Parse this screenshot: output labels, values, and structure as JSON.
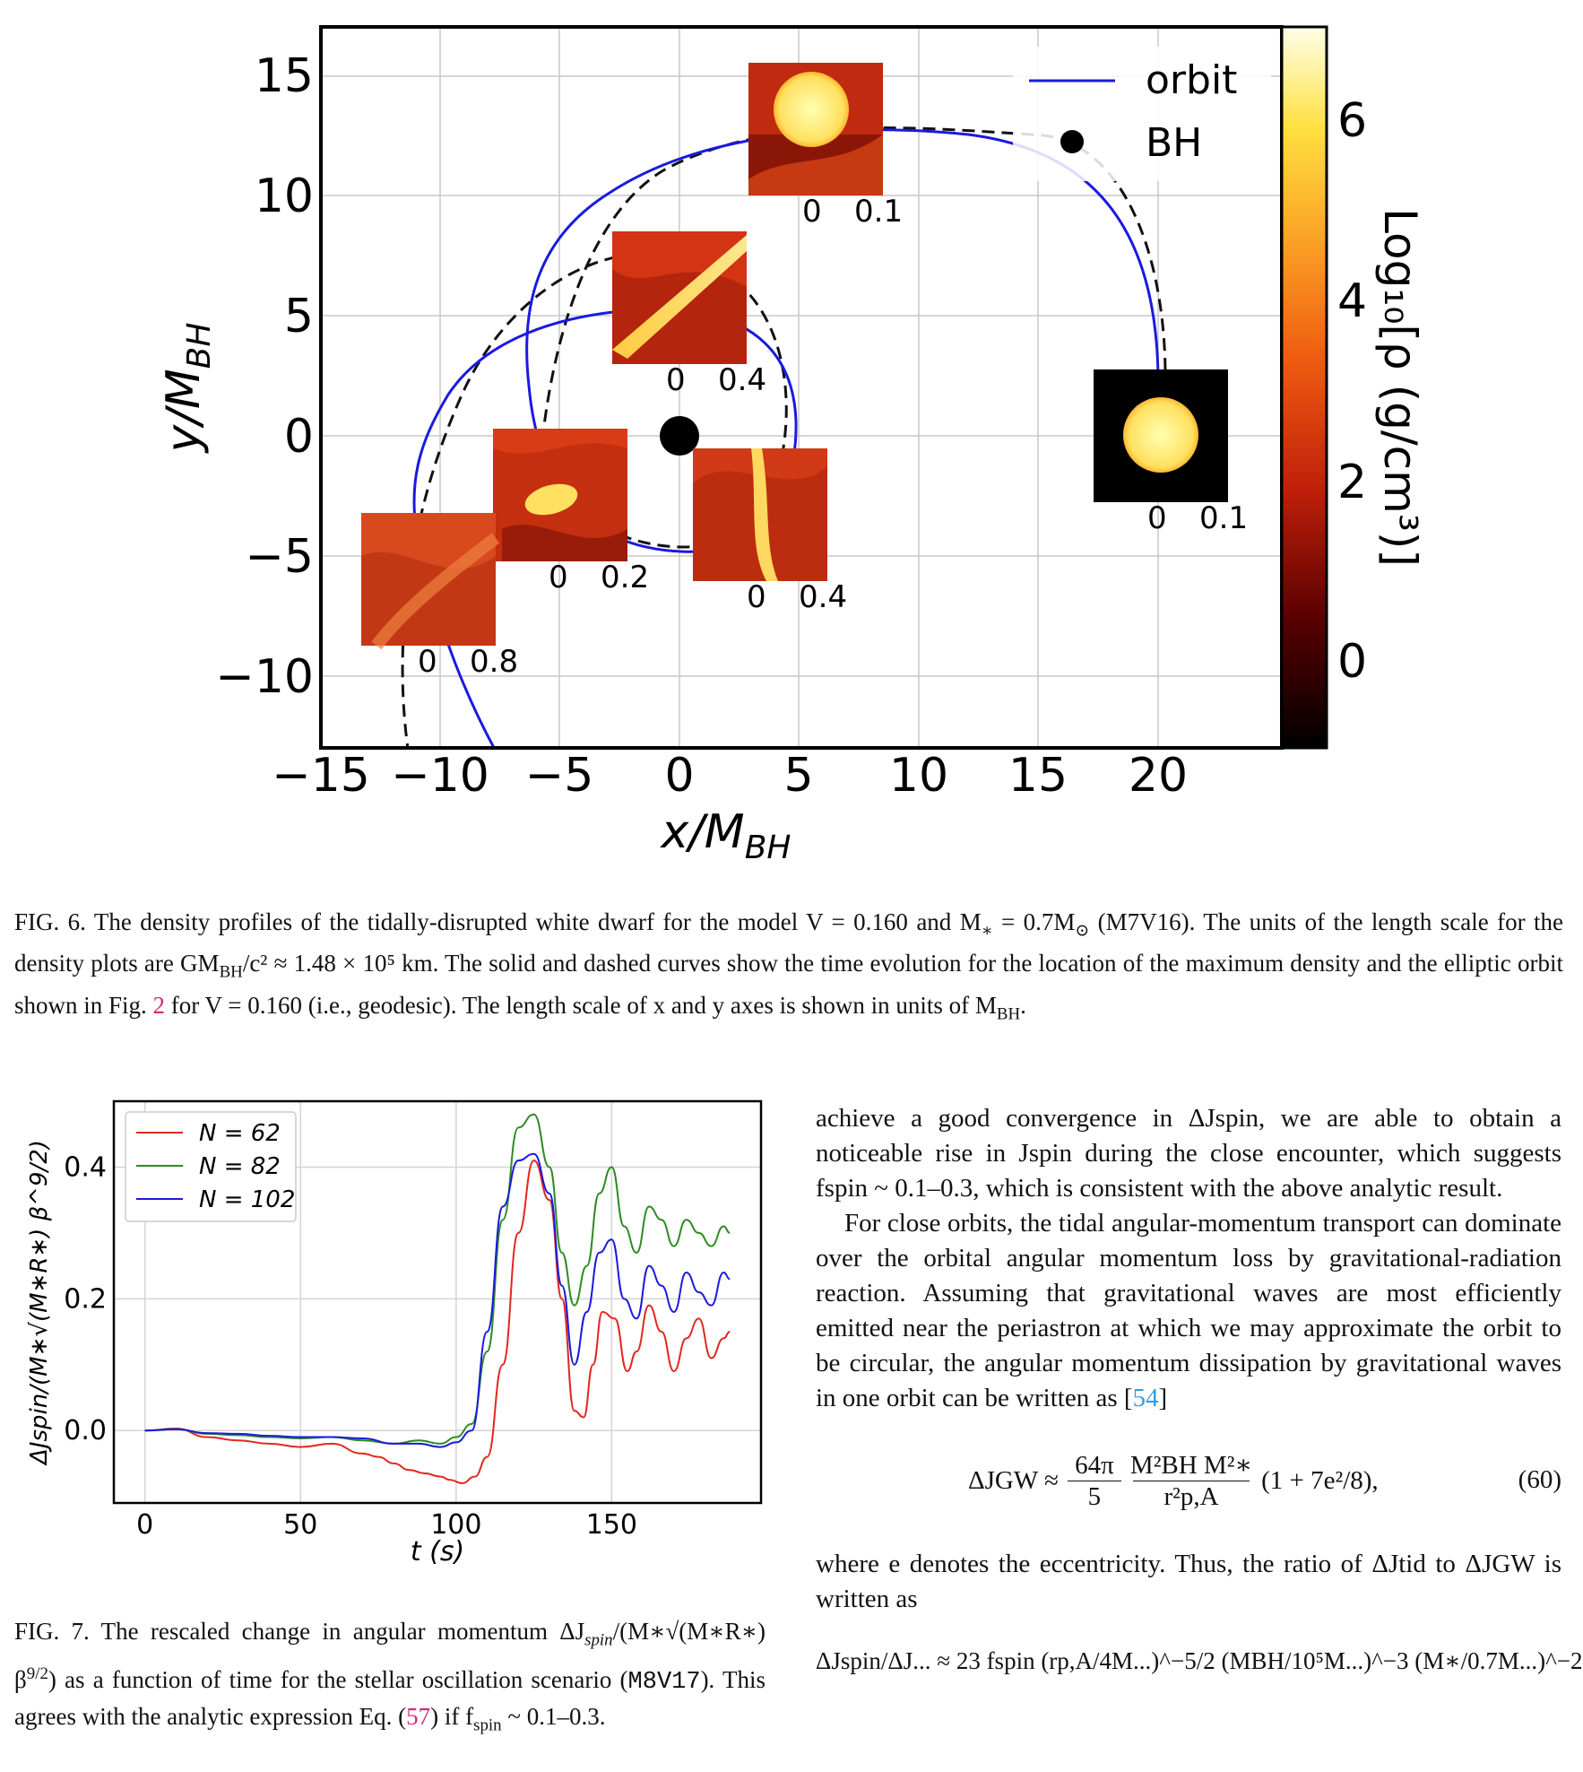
{
  "figure6": {
    "x_label": "x/M",
    "x_label_sub": "BH",
    "y_label": "y/M",
    "y_label_sub": "BH",
    "x_ticks": [
      "−15",
      "−10",
      "−5",
      "0",
      "5",
      "10",
      "15",
      "20"
    ],
    "y_ticks": [
      "15",
      "10",
      "5",
      "0",
      "−5",
      "−10"
    ],
    "legend": [
      "orbit",
      "BH"
    ],
    "colorbar_label": "Log₁₀[ρ (g/cm³)]",
    "colorbar_ticks": [
      "6",
      "4",
      "2",
      "0"
    ],
    "inset_labels": [
      {
        "min": "0",
        "max": "0.1"
      },
      {
        "min": "0",
        "max": "0.4"
      },
      {
        "min": "0",
        "max": "0.1"
      },
      {
        "min": "0",
        "max": "0.2"
      },
      {
        "min": "0",
        "max": "0.4"
      },
      {
        "min": "0",
        "max": "0.8"
      }
    ],
    "colors": {
      "orbit": "#1a1ae0",
      "dashed": "#111111",
      "bh": "#000000"
    }
  },
  "caption6": {
    "label": "FIG. 6.",
    "text_a": "The density profiles of the tidally-disrupted white dwarf for the model V = 0.160 and M",
    "text_b": " = 0.7M",
    "text_c": " (M7V16). The units of the length scale for the density plots are GM",
    "text_d": "/c² ≈ 1.48 × 10⁵ km. The solid and dashed curves show the time evolution for the location of the maximum density and the elliptic orbit shown in Fig. ",
    "fig_ref": "2",
    "text_e": " for V = 0.160 (i.e., geodesic). The length scale of x and y axes is shown in units of M",
    "text_f": "."
  },
  "figure7": {
    "x_label": "t (s)",
    "y_label": "ΔJspin/(M∗√(M∗R∗) β^9/2)",
    "x_ticks": [
      "0",
      "50",
      "100",
      "150"
    ],
    "y_ticks": [
      "0.4",
      "0.2",
      "0.0"
    ],
    "legend": [
      "N = 62",
      "N = 82",
      "N = 102"
    ]
  },
  "chart_data": {
    "type": "line",
    "x_label": "t (s)",
    "y_label": "ΔJspin/(M∗√(M∗R∗) β^9/2)",
    "xlim": [
      -10,
      198
    ],
    "ylim": [
      -0.11,
      0.5
    ],
    "grid": true,
    "legend_position": "top-left",
    "series": [
      {
        "name": "N = 62",
        "color": "#e0281e",
        "x": [
          0,
          10,
          20,
          30,
          40,
          50,
          60,
          70,
          75,
          80,
          85,
          90,
          95,
          98,
          102,
          106,
          110,
          115,
          120,
          125,
          130,
          134,
          138,
          141,
          144,
          147,
          151,
          155,
          158,
          162,
          166,
          170,
          174,
          178,
          182,
          186,
          188
        ],
        "y": [
          0.0,
          0.003,
          -0.01,
          -0.015,
          -0.02,
          -0.025,
          -0.02,
          -0.035,
          -0.04,
          -0.05,
          -0.06,
          -0.065,
          -0.07,
          -0.075,
          -0.08,
          -0.07,
          -0.04,
          0.1,
          0.3,
          0.41,
          0.35,
          0.2,
          0.03,
          0.02,
          0.1,
          0.18,
          0.17,
          0.09,
          0.12,
          0.19,
          0.15,
          0.09,
          0.14,
          0.17,
          0.11,
          0.14,
          0.15
        ]
      },
      {
        "name": "N = 82",
        "color": "#2e8b22",
        "x": [
          0,
          10,
          20,
          30,
          40,
          50,
          60,
          70,
          80,
          88,
          95,
          100,
          105,
          110,
          115,
          120,
          125,
          130,
          134,
          138,
          142,
          146,
          150,
          154,
          158,
          162,
          166,
          170,
          174,
          178,
          182,
          186,
          188
        ],
        "y": [
          0.0,
          0.002,
          -0.005,
          -0.007,
          -0.01,
          -0.012,
          -0.01,
          -0.015,
          -0.02,
          -0.015,
          -0.02,
          -0.01,
          0.01,
          0.12,
          0.32,
          0.46,
          0.48,
          0.4,
          0.27,
          0.19,
          0.25,
          0.36,
          0.4,
          0.31,
          0.27,
          0.34,
          0.32,
          0.28,
          0.32,
          0.3,
          0.28,
          0.31,
          0.3
        ]
      },
      {
        "name": "N = 102",
        "color": "#1a1ae0",
        "x": [
          0,
          10,
          20,
          30,
          40,
          50,
          60,
          70,
          80,
          88,
          95,
          100,
          105,
          110,
          115,
          120,
          125,
          130,
          134,
          138,
          142,
          146,
          150,
          154,
          158,
          162,
          166,
          170,
          174,
          178,
          182,
          186,
          188
        ],
        "y": [
          0.0,
          0.002,
          -0.004,
          -0.005,
          -0.008,
          -0.01,
          -0.01,
          -0.012,
          -0.02,
          -0.02,
          -0.025,
          -0.018,
          0.0,
          0.15,
          0.34,
          0.41,
          0.42,
          0.36,
          0.22,
          0.1,
          0.18,
          0.27,
          0.29,
          0.2,
          0.17,
          0.25,
          0.22,
          0.18,
          0.24,
          0.21,
          0.19,
          0.24,
          0.23
        ]
      }
    ]
  },
  "caption7": {
    "label": "FIG. 7.",
    "text_a": "The rescaled change in angular momentum ΔJ",
    "text_b": "/(M∗√(M∗R∗) β",
    "text_c": ") as a function of time for the stellar oscillation scenario (",
    "model": "M8V17",
    "text_d": "). This agrees with the analytic expression Eq. (",
    "eq_ref": "57",
    "text_e": ") if f",
    "text_f": " ~ 0.1–0.3."
  },
  "body_text": {
    "p1": "achieve a good convergence in ΔJspin, we are able to obtain a noticeable rise in Jspin during the close encounter, which suggests fspin ~ 0.1–0.3, which is consistent with the above analytic result.",
    "p2": "For close orbits, the tidal angular-momentum transport can dominate over the orbital angular momentum loss by gravitational-radiation reaction. Assuming that gravitational waves are most efficiently emitted near the periastron at which we may approximate the orbit to be circular, the angular momentum dissipation by gravitational waves in one orbit can be written as [",
    "ref54": "54",
    "p2_end": "]",
    "eq60_lhs": "ΔJGW ≈",
    "eq60_coef_num": "64π",
    "eq60_coef_den": "5",
    "eq60_frac_num": "M²BH M²∗",
    "eq60_frac_den": "r²p,A",
    "eq60_paren": "(1 + 7e²/8),",
    "eq60_num": "(60)",
    "p3": "where e denotes the eccentricity. Thus, the ratio of ΔJtid to ΔJGW is written as",
    "eq61": "ΔJspin/ΔJ... ≈ 23 fspin (rp,A/4M...)^−5/2 (MBH/10⁵M...)^−3 (M∗/0.7M...)^−2"
  }
}
